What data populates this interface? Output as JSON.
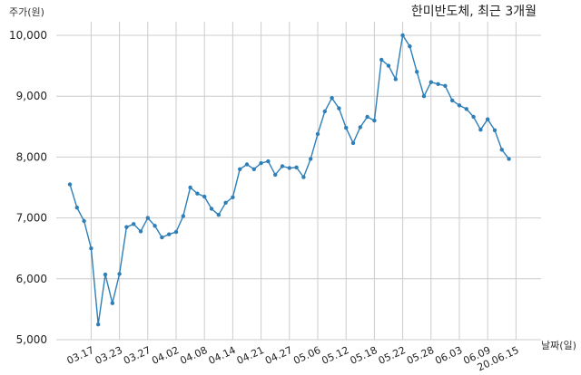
{
  "chart_data": {
    "type": "line",
    "title": "한미반도체, 최근 3개월",
    "ylabel": "주가(원)",
    "xlabel": "날짜(일)",
    "ylim": [
      5000,
      10000
    ],
    "yticks": [
      5000,
      6000,
      7000,
      8000,
      9000,
      10000
    ],
    "ytick_labels": [
      "5,000",
      "6,000",
      "7,000",
      "8,000",
      "9,000",
      "10,000"
    ],
    "xtick_labels": [
      "03.17",
      "03.23",
      "03.27",
      "04.02",
      "04.08",
      "04.14",
      "04.21",
      "04.27",
      "05.06",
      "05.12",
      "05.18",
      "05.22",
      "05.28",
      "06.03",
      "06.09",
      "20.06.15"
    ],
    "xtick_index": [
      3,
      7,
      11,
      15,
      19,
      23,
      27,
      31,
      35,
      39,
      43,
      47,
      51,
      55,
      59,
      63
    ],
    "grid": true,
    "colors": {
      "line": "#2e7fb8",
      "grid": "#cccccc"
    },
    "series": [
      {
        "values": [
          7550,
          7170,
          6950,
          6500,
          5250,
          6070,
          5600,
          6080,
          6850,
          6900,
          6780,
          7000,
          6870,
          6680,
          6730,
          6770,
          7030,
          7500,
          7400,
          7350,
          7150,
          7050,
          7250,
          7340,
          7800,
          7880,
          7800,
          7900,
          7930,
          7710,
          7850,
          7820,
          7830,
          7670,
          7970,
          8380,
          8750,
          8970,
          8800,
          8480,
          8230,
          8490,
          8660,
          8600,
          9600,
          9500,
          9280,
          10000,
          9820,
          9400,
          9000,
          9230,
          9200,
          9170,
          8930,
          8850,
          8790,
          8660,
          8450,
          8620,
          8440,
          8120,
          7970
        ]
      }
    ]
  }
}
